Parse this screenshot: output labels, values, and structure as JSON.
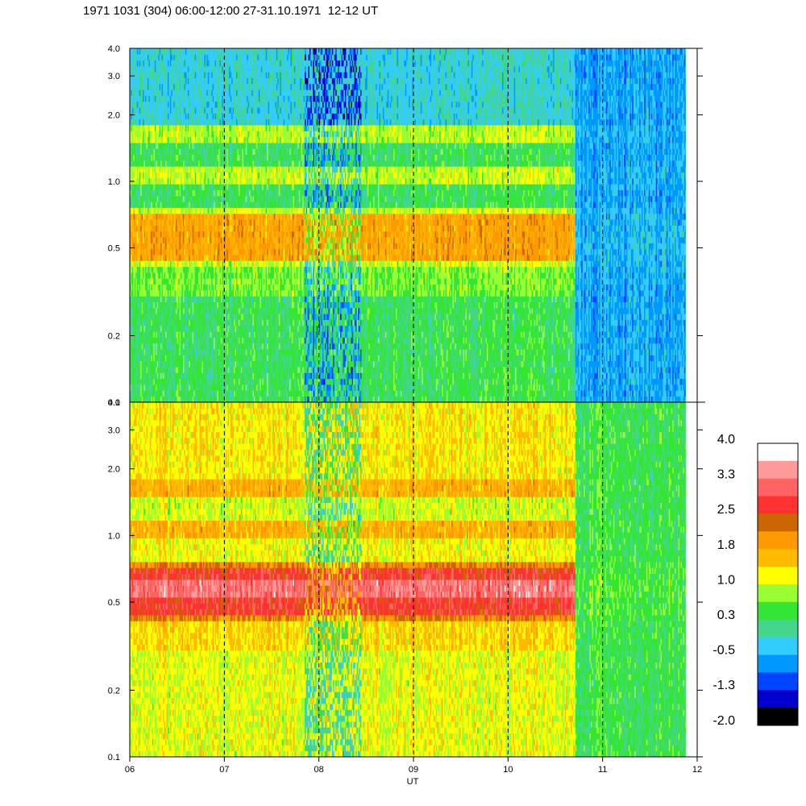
{
  "title": "1971 1031 (304) 06:00-12:00 27-31.10.1971  12-12 UT",
  "chart_data": {
    "type": "heatmap",
    "panels": [
      {
        "y_scale": "log",
        "ylim": [
          0.1,
          4.0
        ],
        "y_ticks": [
          "0.1",
          "0.2",
          "0.5",
          "1.0",
          "2.0",
          "3.0",
          "4.0"
        ],
        "bands": [
          {
            "from": 0.1,
            "to": 0.3,
            "level": 0.3
          },
          {
            "from": 0.3,
            "to": 0.4,
            "level": 0.65
          },
          {
            "from": 0.4,
            "to": 0.45,
            "level": 1.0
          },
          {
            "from": 0.45,
            "to": 0.7,
            "level": 1.8
          },
          {
            "from": 0.7,
            "to": 0.76,
            "level": 1.0
          },
          {
            "from": 0.76,
            "to": 0.95,
            "level": 0.3
          },
          {
            "from": 0.95,
            "to": 1.2,
            "level": 0.95
          },
          {
            "from": 1.2,
            "to": 1.5,
            "level": 0.3
          },
          {
            "from": 1.5,
            "to": 1.8,
            "level": 0.9
          },
          {
            "from": 1.8,
            "to": 4.0,
            "level": -0.2
          }
        ],
        "late_level": -0.6
      },
      {
        "y_scale": "log",
        "ylim": [
          0.1,
          4.0
        ],
        "y_ticks": [
          "0.1",
          "0.2",
          "0.5",
          "1.0",
          "2.0",
          "3.0",
          "4.0"
        ],
        "bands": [
          {
            "from": 0.1,
            "to": 0.3,
            "level": 1.1
          },
          {
            "from": 0.3,
            "to": 0.4,
            "level": 1.4
          },
          {
            "from": 0.4,
            "to": 0.45,
            "level": 2.1
          },
          {
            "from": 0.45,
            "to": 0.52,
            "level": 2.7
          },
          {
            "from": 0.52,
            "to": 0.62,
            "level": 3.2
          },
          {
            "from": 0.62,
            "to": 0.7,
            "level": 2.7
          },
          {
            "from": 0.7,
            "to": 0.76,
            "level": 2.1
          },
          {
            "from": 0.76,
            "to": 0.95,
            "level": 1.2
          },
          {
            "from": 0.95,
            "to": 1.2,
            "level": 1.7
          },
          {
            "from": 1.2,
            "to": 1.5,
            "level": 1.0
          },
          {
            "from": 1.5,
            "to": 1.8,
            "level": 1.7
          },
          {
            "from": 1.8,
            "to": 4.0,
            "level": 1.3
          }
        ],
        "late_level": 0.3
      }
    ],
    "x_ticks": [
      "06",
      "07",
      "08",
      "09",
      "10",
      "11",
      "12"
    ],
    "xlim": [
      6,
      12
    ],
    "xlabel": "UT",
    "data_end": 11.88,
    "band_end": 10.7,
    "dip_intervals": [
      [
        7.85,
        8.45
      ]
    ],
    "hour_gridlines": [
      7,
      8,
      9,
      10,
      11
    ],
    "colorbar": {
      "labels": [
        "4.0",
        "3.3",
        "2.5",
        "1.8",
        "1.0",
        "0.3",
        "-0.5",
        "-1.3",
        "-2.0"
      ],
      "colors": [
        "#ffffff",
        "#ff9a9a",
        "#ff6464",
        "#ff3232",
        "#cc6600",
        "#ff9900",
        "#ffbb00",
        "#ffff00",
        "#99ff33",
        "#33e633",
        "#44d68c",
        "#33ccff",
        "#0099ff",
        "#0044ff",
        "#0000cc",
        "#000000"
      ],
      "min": -2.0,
      "max": 4.0
    }
  }
}
